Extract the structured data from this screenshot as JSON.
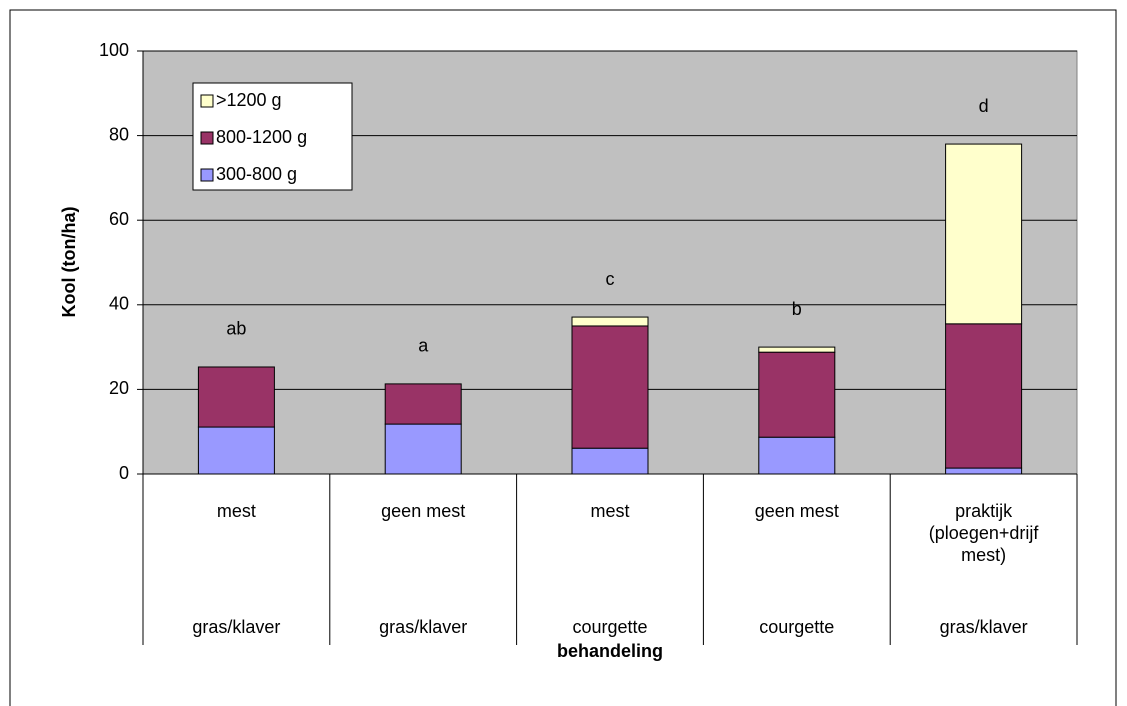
{
  "chart_data": {
    "type": "stacked_bar",
    "ylabel": "Kool (ton/ha)",
    "xlabel": "behandeling",
    "categories": [
      "mest",
      "geen mest",
      "mest",
      "geen mest",
      "praktijk (ploegen+drijf mest)"
    ],
    "groups": [
      "gras/klaver",
      "gras/klaver",
      "courgette",
      "courgette",
      "gras/klaver"
    ],
    "annotations": [
      "ab",
      "a",
      "c",
      "b",
      "d"
    ],
    "series": [
      {
        "name": "300-800 g",
        "color": "#9999ff",
        "values": [
          11.1,
          11.8,
          6.1,
          8.7,
          1.4
        ]
      },
      {
        "name": "800-1200 g",
        "color": "#993366",
        "values": [
          14.2,
          9.5,
          28.9,
          20.1,
          34.1
        ]
      },
      {
        "name": ">1200 g",
        "color": "#ffffcc",
        "values": [
          0,
          0,
          2.1,
          1.2,
          42.5
        ]
      }
    ],
    "ylim": [
      0,
      100
    ],
    "yticks": [
      0,
      20,
      40,
      60,
      80,
      100
    ],
    "grid": true,
    "plot_background": "#c0c0c0",
    "legend": "top-left"
  }
}
